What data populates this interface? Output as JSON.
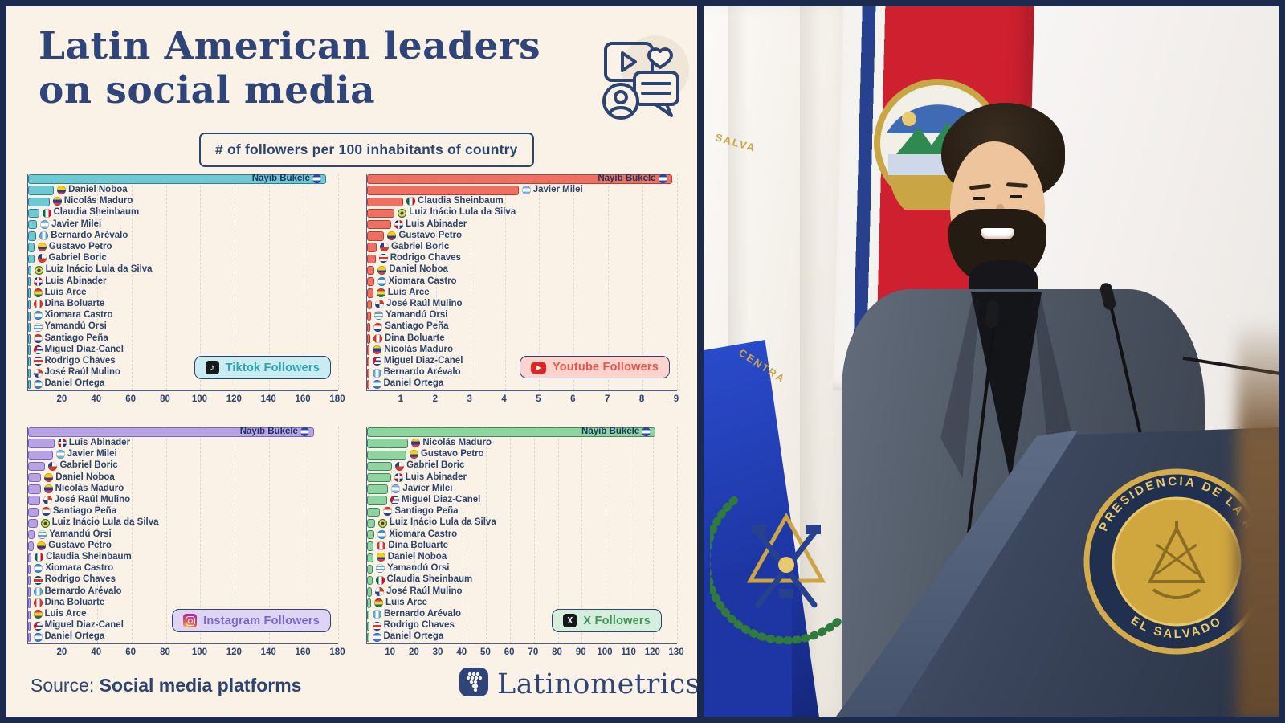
{
  "palette": {
    "frame": "#1c2a4e",
    "panel_bg": "#faf2e6",
    "ink": "#2e4470",
    "title": "#2f4579"
  },
  "header": {
    "title_line1": "Latin American leaders",
    "title_line2": "on social media",
    "subtitle": "# of followers per 100 inhabitants of country",
    "hero_icon": "social-media-engagement-icon"
  },
  "footer": {
    "source_label": "Source:",
    "source_value": "Social media platforms",
    "brand": "Latinometrics",
    "brand_icon": "latinometrics-globe-icon"
  },
  "photo": {
    "subject": "Nayib Bukele speaking at a podium between El Salvador and Costa Rica flags",
    "seal_text_top": "PRESIDENCIA DE LA R",
    "seal_text_bottom": "EL SALVADO",
    "flag_text_fragment_1": "SALVA",
    "flag_text_fragment_2": "CENTRA"
  },
  "chart_data": [
    {
      "id": "tiktok",
      "type": "bar",
      "orientation": "horizontal",
      "legend": {
        "label": "Tiktok Followers",
        "icon": "tiktok-icon"
      },
      "x_ticks": [
        20,
        40,
        60,
        80,
        100,
        120,
        140,
        160,
        180
      ],
      "xlim": [
        0,
        180
      ],
      "grid": "dashed-vertical",
      "colors": {
        "fill": "#6fc9d3",
        "border": "#2f7f92",
        "text": "#2fa3b5",
        "legend_bg": "#c9ecf3"
      },
      "entries": [
        {
          "leader": "Nayib Bukele",
          "country": "El Salvador",
          "flag": "sv",
          "value": 173
        },
        {
          "leader": "Daniel Noboa",
          "country": "Ecuador",
          "flag": "ec",
          "value": 15
        },
        {
          "leader": "Nicolás Maduro",
          "country": "Venezuela",
          "flag": "ve",
          "value": 12.5
        },
        {
          "leader": "Claudia Sheinbaum",
          "country": "Mexico",
          "flag": "mx",
          "value": 6.3
        },
        {
          "leader": "Javier Milei",
          "country": "Argentina",
          "flag": "ar",
          "value": 5.2
        },
        {
          "leader": "Bernardo Arévalo",
          "country": "Guatemala",
          "flag": "gt",
          "value": 4.8
        },
        {
          "leader": "Gustavo Petro",
          "country": "Colombia",
          "flag": "co",
          "value": 3.7
        },
        {
          "leader": "Gabriel Boric",
          "country": "Chile",
          "flag": "cl",
          "value": 3.5
        },
        {
          "leader": "Luiz Inácio Lula da Silva",
          "country": "Brazil",
          "flag": "br",
          "value": 1.7
        },
        {
          "leader": "Luis Abinader",
          "country": "Dominican Republic",
          "flag": "do",
          "value": 1.5
        },
        {
          "leader": "Luis Arce",
          "country": "Bolivia",
          "flag": "bo",
          "value": 1.2
        },
        {
          "leader": "Dina Boluarte",
          "country": "Peru",
          "flag": "pe",
          "value": 0.9
        },
        {
          "leader": "Xiomara Castro",
          "country": "Honduras",
          "flag": "hn",
          "value": 0.7
        },
        {
          "leader": "Yamandú Orsi",
          "country": "Uruguay",
          "flag": "uy",
          "value": 0.6
        },
        {
          "leader": "Santiago Peña",
          "country": "Paraguay",
          "flag": "py",
          "value": 0.5
        },
        {
          "leader": "Miguel Diaz-Canel",
          "country": "Cuba",
          "flag": "cu",
          "value": 0.45
        },
        {
          "leader": "Rodrigo Chaves",
          "country": "Costa Rica",
          "flag": "cr",
          "value": 0.4
        },
        {
          "leader": "José Raúl Mulino",
          "country": "Panama",
          "flag": "pa",
          "value": 0.35
        },
        {
          "leader": "Daniel Ortega",
          "country": "Nicaragua",
          "flag": "ni",
          "value": 0.3
        }
      ]
    },
    {
      "id": "youtube",
      "type": "bar",
      "orientation": "horizontal",
      "legend": {
        "label": "Youtube Followers",
        "icon": "youtube-icon"
      },
      "x_ticks": [
        1,
        2,
        3,
        4,
        5,
        6,
        7,
        8,
        9
      ],
      "xlim": [
        0,
        9
      ],
      "grid": "dashed-vertical",
      "colors": {
        "fill": "#ee7062",
        "border": "#b43f34",
        "text": "#e4574a",
        "legend_bg": "#fcd4cd"
      },
      "entries": [
        {
          "leader": "Nayib Bukele",
          "country": "El Salvador",
          "flag": "sv",
          "value": 8.85
        },
        {
          "leader": "Javier Milei",
          "country": "Argentina",
          "flag": "ar",
          "value": 4.4
        },
        {
          "leader": "Claudia Sheinbaum",
          "country": "Mexico",
          "flag": "mx",
          "value": 1.05
        },
        {
          "leader": "Luiz Inácio Lula da Silva",
          "country": "Brazil",
          "flag": "br",
          "value": 0.8
        },
        {
          "leader": "Luis Abinader",
          "country": "Dominican Republic",
          "flag": "do",
          "value": 0.7
        },
        {
          "leader": "Gustavo Petro",
          "country": "Colombia",
          "flag": "co",
          "value": 0.5
        },
        {
          "leader": "Gabriel Boric",
          "country": "Chile",
          "flag": "cl",
          "value": 0.28
        },
        {
          "leader": "Rodrigo Chaves",
          "country": "Costa Rica",
          "flag": "cr",
          "value": 0.25
        },
        {
          "leader": "Daniel Noboa",
          "country": "Ecuador",
          "flag": "ec",
          "value": 0.22
        },
        {
          "leader": "Xiomara Castro",
          "country": "Honduras",
          "flag": "hn",
          "value": 0.2
        },
        {
          "leader": "Luis Arce",
          "country": "Bolivia",
          "flag": "bo",
          "value": 0.18
        },
        {
          "leader": "José Raúl Mulino",
          "country": "Panama",
          "flag": "pa",
          "value": 0.14
        },
        {
          "leader": "Yamandú Orsi",
          "country": "Uruguay",
          "flag": "uy",
          "value": 0.12
        },
        {
          "leader": "Santiago Peña",
          "country": "Paraguay",
          "flag": "py",
          "value": 0.1
        },
        {
          "leader": "Dina Boluarte",
          "country": "Peru",
          "flag": "pe",
          "value": 0.09
        },
        {
          "leader": "Nicolás Maduro",
          "country": "Venezuela",
          "flag": "ve",
          "value": 0.08
        },
        {
          "leader": "Miguel Diaz-Canel",
          "country": "Cuba",
          "flag": "cu",
          "value": 0.07
        },
        {
          "leader": "Bernardo Arévalo",
          "country": "Guatemala",
          "flag": "gt",
          "value": 0.06
        },
        {
          "leader": "Daniel Ortega",
          "country": "Nicaragua",
          "flag": "ni",
          "value": 0.04
        }
      ]
    },
    {
      "id": "instagram",
      "type": "bar",
      "orientation": "horizontal",
      "legend": {
        "label": "Instagram Followers",
        "icon": "instagram-icon"
      },
      "x_ticks": [
        20,
        40,
        60,
        80,
        100,
        120,
        140,
        160,
        180
      ],
      "xlim": [
        0,
        180
      ],
      "grid": "dashed-vertical",
      "colors": {
        "fill": "#b7a3e3",
        "border": "#7a63c2",
        "text": "#7c64cf",
        "legend_bg": "#ded4f4"
      },
      "entries": [
        {
          "leader": "Nayib Bukele",
          "country": "El Salvador",
          "flag": "sv",
          "value": 166
        },
        {
          "leader": "Luis Abinader",
          "country": "Dominican Republic",
          "flag": "do",
          "value": 15.3
        },
        {
          "leader": "Javier Milei",
          "country": "Argentina",
          "flag": "ar",
          "value": 14.3
        },
        {
          "leader": "Gabriel Boric",
          "country": "Chile",
          "flag": "cl",
          "value": 10
        },
        {
          "leader": "Daniel Noboa",
          "country": "Ecuador",
          "flag": "ec",
          "value": 7.6
        },
        {
          "leader": "Nicolás Maduro",
          "country": "Venezuela",
          "flag": "ve",
          "value": 7.3
        },
        {
          "leader": "José Raúl Mulino",
          "country": "Panama",
          "flag": "pa",
          "value": 6.8
        },
        {
          "leader": "Santiago Peña",
          "country": "Paraguay",
          "flag": "py",
          "value": 6
        },
        {
          "leader": "Luiz Inácio Lula da Silva",
          "country": "Brazil",
          "flag": "br",
          "value": 5.4
        },
        {
          "leader": "Yamandú Orsi",
          "country": "Uruguay",
          "flag": "uy",
          "value": 3.9
        },
        {
          "leader": "Gustavo Petro",
          "country": "Colombia",
          "flag": "co",
          "value": 3.4
        },
        {
          "leader": "Claudia Sheinbaum",
          "country": "Mexico",
          "flag": "mx",
          "value": 1.9
        },
        {
          "leader": "Xiomara Castro",
          "country": "Honduras",
          "flag": "hn",
          "value": 1.5
        },
        {
          "leader": "Rodrigo Chaves",
          "country": "Costa Rica",
          "flag": "cr",
          "value": 1.3
        },
        {
          "leader": "Bernardo Arévalo",
          "country": "Guatemala",
          "flag": "gt",
          "value": 0.9
        },
        {
          "leader": "Dina Boluarte",
          "country": "Peru",
          "flag": "pe",
          "value": 0.7
        },
        {
          "leader": "Luis Arce",
          "country": "Bolivia",
          "flag": "bo",
          "value": 0.55
        },
        {
          "leader": "Miguel Diaz-Canel",
          "country": "Cuba",
          "flag": "cu",
          "value": 0.35
        },
        {
          "leader": "Daniel Ortega",
          "country": "Nicaragua",
          "flag": "ni",
          "value": 0.25
        }
      ]
    },
    {
      "id": "x",
      "type": "bar",
      "orientation": "horizontal",
      "legend": {
        "label": "X Followers",
        "icon": "x-icon"
      },
      "x_ticks": [
        10,
        20,
        30,
        40,
        50,
        60,
        70,
        80,
        90,
        100,
        110,
        120,
        130
      ],
      "xlim": [
        0,
        130
      ],
      "grid": "dashed-vertical",
      "colors": {
        "fill": "#8fd3a0",
        "border": "#3f8a58",
        "text": "#45935c",
        "legend_bg": "#d6eedd"
      },
      "entries": [
        {
          "leader": "Nayib Bukele",
          "country": "El Salvador",
          "flag": "sv",
          "value": 121
        },
        {
          "leader": "Nicolás Maduro",
          "country": "Venezuela",
          "flag": "ve",
          "value": 17.3
        },
        {
          "leader": "Gustavo Petro",
          "country": "Colombia",
          "flag": "co",
          "value": 16.5
        },
        {
          "leader": "Gabriel Boric",
          "country": "Chile",
          "flag": "cl",
          "value": 10.5
        },
        {
          "leader": "Luis Abinader",
          "country": "Dominican Republic",
          "flag": "do",
          "value": 10
        },
        {
          "leader": "Javier Milei",
          "country": "Argentina",
          "flag": "ar",
          "value": 8.9
        },
        {
          "leader": "Miguel Diaz-Canel",
          "country": "Cuba",
          "flag": "cu",
          "value": 8.4
        },
        {
          "leader": "Santiago Peña",
          "country": "Paraguay",
          "flag": "py",
          "value": 5.5
        },
        {
          "leader": "Luiz Inácio Lula da Silva",
          "country": "Brazil",
          "flag": "br",
          "value": 3.3
        },
        {
          "leader": "Xiomara Castro",
          "country": "Honduras",
          "flag": "hn",
          "value": 3.1
        },
        {
          "leader": "Dina Boluarte",
          "country": "Peru",
          "flag": "pe",
          "value": 2.8
        },
        {
          "leader": "Daniel Noboa",
          "country": "Ecuador",
          "flag": "ec",
          "value": 2.6
        },
        {
          "leader": "Yamandú Orsi",
          "country": "Uruguay",
          "flag": "uy",
          "value": 2.4
        },
        {
          "leader": "Claudia Sheinbaum",
          "country": "Mexico",
          "flag": "mx",
          "value": 2.2
        },
        {
          "leader": "José Raúl Mulino",
          "country": "Panama",
          "flag": "pa",
          "value": 2.0
        },
        {
          "leader": "Luis Arce",
          "country": "Bolivia",
          "flag": "bo",
          "value": 1.7
        },
        {
          "leader": "Bernardo Arévalo",
          "country": "Guatemala",
          "flag": "gt",
          "value": 1.0
        },
        {
          "leader": "Rodrigo Chaves",
          "country": "Costa Rica",
          "flag": "cr",
          "value": 0.9
        },
        {
          "leader": "Daniel Ortega",
          "country": "Nicaragua",
          "flag": "ni",
          "value": 0.5
        }
      ]
    }
  ]
}
